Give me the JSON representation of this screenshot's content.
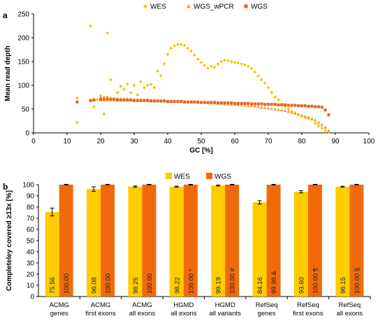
{
  "panels": {
    "a_label": "a",
    "b_label": "b"
  },
  "chart_data": [
    {
      "type": "scatter",
      "panel": "a",
      "xlabel": "GC [%]",
      "ylabel": "Mean read depth",
      "xlim": [
        0,
        100
      ],
      "ylim": [
        0,
        250
      ],
      "xticks": [
        0,
        10,
        20,
        30,
        40,
        50,
        60,
        70,
        80,
        90,
        100
      ],
      "yticks": [
        0,
        50,
        100,
        150,
        200,
        250
      ],
      "grid": false,
      "legend": "top-center",
      "series": [
        {
          "name": "WES",
          "marker": "diamond",
          "color": "#f5c400",
          "points": [
            [
              13,
              22
            ],
            [
              17,
              225
            ],
            [
              18,
              55
            ],
            [
              19,
              70
            ],
            [
              20,
              78
            ],
            [
              21,
              40
            ],
            [
              22,
              210
            ],
            [
              22,
              75
            ],
            [
              23,
              112
            ],
            [
              24,
              72
            ],
            [
              25,
              85
            ],
            [
              26,
              98
            ],
            [
              27,
              92
            ],
            [
              28,
              103
            ],
            [
              29,
              85
            ],
            [
              30,
              100
            ],
            [
              31,
              80
            ],
            [
              32,
              108
            ],
            [
              33,
              95
            ],
            [
              34,
              100
            ],
            [
              35,
              102
            ],
            [
              36,
              95
            ],
            [
              37,
              130
            ],
            [
              38,
              120
            ],
            [
              39,
              145
            ],
            [
              40,
              165
            ],
            [
              41,
              178
            ],
            [
              42,
              183
            ],
            [
              43,
              186
            ],
            [
              44,
              186
            ],
            [
              45,
              184
            ],
            [
              46,
              178
            ],
            [
              47,
              172
            ],
            [
              48,
              164
            ],
            [
              49,
              155
            ],
            [
              50,
              148
            ],
            [
              51,
              142
            ],
            [
              52,
              136
            ],
            [
              53,
              140
            ],
            [
              54,
              138
            ],
            [
              55,
              145
            ],
            [
              56,
              150
            ],
            [
              57,
              153
            ],
            [
              58,
              152
            ],
            [
              59,
              150
            ],
            [
              60,
              148
            ],
            [
              61,
              147
            ],
            [
              62,
              145
            ],
            [
              63,
              143
            ],
            [
              64,
              140
            ],
            [
              65,
              135
            ],
            [
              66,
              128
            ],
            [
              67,
              120
            ],
            [
              68,
              112
            ],
            [
              69,
              105
            ],
            [
              70,
              95
            ],
            [
              71,
              85
            ],
            [
              72,
              75
            ],
            [
              73,
              70
            ],
            [
              74,
              60
            ],
            [
              75,
              55
            ],
            [
              76,
              50
            ],
            [
              77,
              45
            ],
            [
              78,
              42
            ],
            [
              79,
              38
            ],
            [
              80,
              35
            ],
            [
              81,
              32
            ],
            [
              82,
              30
            ],
            [
              83,
              28
            ],
            [
              84,
              20
            ],
            [
              85,
              15
            ],
            [
              86,
              10
            ],
            [
              87,
              5
            ],
            [
              88,
              2
            ]
          ]
        },
        {
          "name": "WGS_wPCR",
          "marker": "triangle",
          "color": "#f0a030",
          "points": [
            [
              13,
              74
            ],
            [
              17,
              70
            ],
            [
              18,
              72
            ],
            [
              20,
              75
            ],
            [
              21,
              76
            ],
            [
              22,
              75
            ],
            [
              23,
              74
            ],
            [
              24,
              73
            ],
            [
              25,
              73
            ],
            [
              26,
              72
            ],
            [
              27,
              72
            ],
            [
              28,
              72
            ],
            [
              29,
              71
            ],
            [
              30,
              71
            ],
            [
              31,
              70
            ],
            [
              32,
              70
            ],
            [
              33,
              70
            ],
            [
              34,
              70
            ],
            [
              35,
              69
            ],
            [
              36,
              69
            ],
            [
              37,
              68
            ],
            [
              38,
              68
            ],
            [
              39,
              68
            ],
            [
              40,
              67
            ],
            [
              41,
              67
            ],
            [
              42,
              67
            ],
            [
              43,
              66
            ],
            [
              44,
              66
            ],
            [
              45,
              66
            ],
            [
              46,
              65
            ],
            [
              47,
              65
            ],
            [
              48,
              65
            ],
            [
              49,
              64
            ],
            [
              50,
              64
            ],
            [
              51,
              64
            ],
            [
              52,
              63
            ],
            [
              53,
              63
            ],
            [
              54,
              63
            ],
            [
              55,
              62
            ],
            [
              56,
              62
            ],
            [
              57,
              61
            ],
            [
              58,
              61
            ],
            [
              59,
              60
            ],
            [
              60,
              60
            ],
            [
              61,
              59
            ],
            [
              62,
              59
            ],
            [
              63,
              58
            ],
            [
              64,
              57
            ],
            [
              65,
              57
            ],
            [
              66,
              56
            ],
            [
              67,
              55
            ],
            [
              68,
              54
            ],
            [
              69,
              53
            ],
            [
              70,
              52
            ],
            [
              71,
              51
            ],
            [
              72,
              50
            ],
            [
              73,
              49
            ],
            [
              74,
              48
            ],
            [
              75,
              47
            ],
            [
              76,
              45
            ],
            [
              77,
              43
            ],
            [
              78,
              41
            ],
            [
              79,
              39
            ],
            [
              80,
              37
            ],
            [
              81,
              35
            ],
            [
              82,
              33
            ],
            [
              83,
              30
            ],
            [
              84,
              27
            ],
            [
              85,
              22
            ],
            [
              86,
              17
            ],
            [
              87,
              12
            ],
            [
              88,
              5
            ]
          ]
        },
        {
          "name": "WGS",
          "marker": "square",
          "color": "#e8621a",
          "points": [
            [
              13,
              65
            ],
            [
              17,
              68
            ],
            [
              18,
              69
            ],
            [
              20,
              70
            ],
            [
              21,
              70
            ],
            [
              22,
              70
            ],
            [
              23,
              70
            ],
            [
              24,
              70
            ],
            [
              25,
              69
            ],
            [
              26,
              69
            ],
            [
              27,
              69
            ],
            [
              28,
              69
            ],
            [
              29,
              69
            ],
            [
              30,
              68
            ],
            [
              31,
              68
            ],
            [
              32,
              68
            ],
            [
              33,
              68
            ],
            [
              34,
              68
            ],
            [
              35,
              67
            ],
            [
              36,
              67
            ],
            [
              37,
              67
            ],
            [
              38,
              67
            ],
            [
              39,
              67
            ],
            [
              40,
              66
            ],
            [
              41,
              66
            ],
            [
              42,
              66
            ],
            [
              43,
              66
            ],
            [
              44,
              66
            ],
            [
              45,
              65
            ],
            [
              46,
              65
            ],
            [
              47,
              65
            ],
            [
              48,
              65
            ],
            [
              49,
              65
            ],
            [
              50,
              64
            ],
            [
              51,
              64
            ],
            [
              52,
              64
            ],
            [
              53,
              64
            ],
            [
              54,
              64
            ],
            [
              55,
              63
            ],
            [
              56,
              63
            ],
            [
              57,
              63
            ],
            [
              58,
              63
            ],
            [
              59,
              63
            ],
            [
              60,
              62
            ],
            [
              61,
              62
            ],
            [
              62,
              62
            ],
            [
              63,
              62
            ],
            [
              64,
              62
            ],
            [
              65,
              61
            ],
            [
              66,
              61
            ],
            [
              67,
              61
            ],
            [
              68,
              61
            ],
            [
              69,
              60
            ],
            [
              70,
              60
            ],
            [
              71,
              60
            ],
            [
              72,
              60
            ],
            [
              73,
              59
            ],
            [
              74,
              59
            ],
            [
              75,
              59
            ],
            [
              76,
              58
            ],
            [
              77,
              58
            ],
            [
              78,
              58
            ],
            [
              79,
              57
            ],
            [
              80,
              57
            ],
            [
              81,
              57
            ],
            [
              82,
              56
            ],
            [
              83,
              56
            ],
            [
              84,
              55
            ],
            [
              85,
              55
            ],
            [
              86,
              54
            ],
            [
              87,
              48
            ],
            [
              88,
              38
            ]
          ]
        }
      ]
    },
    {
      "type": "bar",
      "panel": "b",
      "ylabel": "Completeley covered ≥13x [%]",
      "ylim": [
        0,
        100
      ],
      "yticks": [
        0,
        10,
        20,
        30,
        40,
        50,
        60,
        70,
        80,
        90,
        100
      ],
      "grid": false,
      "legend": "top-center",
      "categories": [
        [
          "ACMG",
          "genes"
        ],
        [
          "ACMG",
          "first exons"
        ],
        [
          "ACMG",
          "all exons"
        ],
        [
          "HGMD",
          "all exons"
        ],
        [
          "HGMD",
          "all variants"
        ],
        [
          "RefSeq",
          "genes"
        ],
        [
          "RefSeq",
          "first exons"
        ],
        [
          "RefSeq",
          "all exons"
        ]
      ],
      "series": [
        {
          "name": "WES",
          "color": "#ffcc00",
          "values": [
            75.56,
            96.08,
            98.25,
            98.22,
            99.19,
            84.16,
            93.6,
            98.15
          ],
          "labels": [
            "75.56",
            "96.08",
            "98.25",
            "98.22",
            "99.19",
            "84.16",
            "93.60",
            "98.15"
          ],
          "errors": [
            3.5,
            2.0,
            0.6,
            0.5,
            0.4,
            1.5,
            1.0,
            0.5
          ]
        },
        {
          "name": "WGS",
          "color": "#f06a0c",
          "values": [
            100.0,
            100.0,
            100.0,
            100.0,
            100.0,
            99.98,
            100.0,
            100.0
          ],
          "labels": [
            "100.00",
            "100.00",
            "100.00",
            "100.00 *",
            "100.00 #",
            "99.98 &",
            "100.00 ¶",
            "100.00 §"
          ],
          "errors": [
            0.3,
            0.3,
            0.3,
            0.3,
            0.3,
            0.3,
            0.3,
            0.3
          ]
        }
      ]
    }
  ]
}
